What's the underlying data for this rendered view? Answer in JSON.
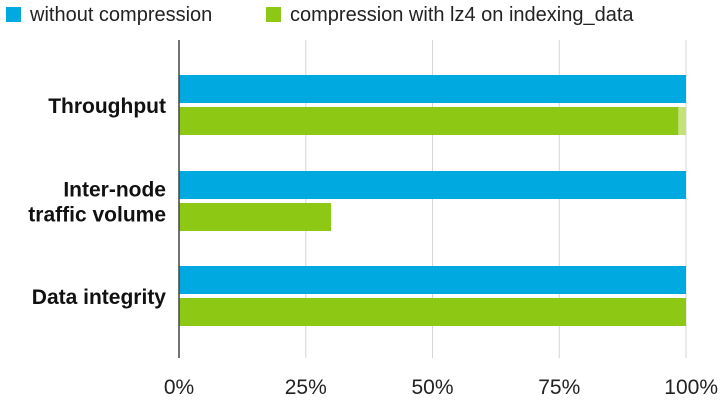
{
  "chart_data": {
    "type": "bar",
    "orientation": "horizontal",
    "title": "",
    "xlabel": "",
    "ylabel": "",
    "categories": [
      "Throughput",
      "Inter-node\ntraffic volume",
      "Data integrity"
    ],
    "series": [
      {
        "name": "without compression",
        "color": "#00a9e0",
        "values": [
          100,
          100,
          100
        ]
      },
      {
        "name": "compression with lz4 on indexing_data",
        "color": "#8cc814",
        "values": [
          98.5,
          30,
          100
        ]
      }
    ],
    "error_overlay": {
      "category": "Throughput",
      "series": "compression with lz4 on indexing_data",
      "from": 98.5,
      "to": 100,
      "color": "#c3e27a"
    },
    "xlim": [
      0,
      100
    ],
    "ticks": [
      0,
      25,
      50,
      75,
      100
    ],
    "tick_labels": [
      "0%",
      "25%",
      "50%",
      "75%",
      "100%"
    ],
    "grid": true,
    "legend_position": "top-left"
  }
}
